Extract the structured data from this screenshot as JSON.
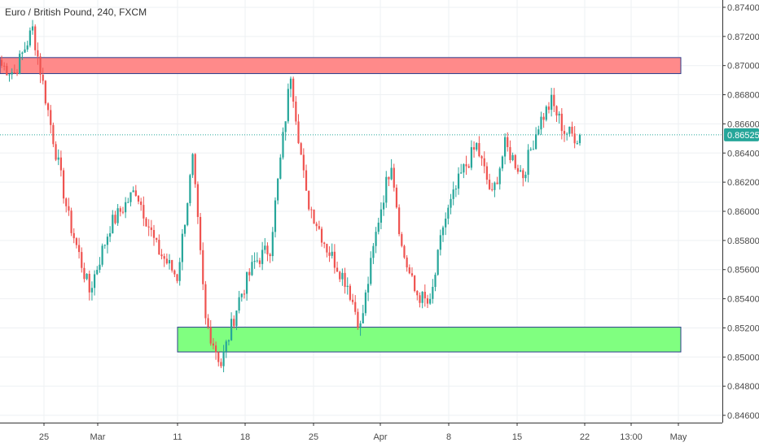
{
  "header": {
    "title": "Euro / British Pound, 240, FXCM"
  },
  "price_tag": {
    "label": "0.86525",
    "color": "#26a69a"
  },
  "colors": {
    "up": "#26a69a",
    "down": "#ef5350",
    "grid": "#eef0f3",
    "resistance_fill": "#ff8a8a",
    "support_fill": "#80ff80",
    "zone_border": "#2c3e8c"
  },
  "chart_data": {
    "type": "candlestick",
    "symbol": "Euro / British Pound",
    "timeframe": "240",
    "source": "FXCM",
    "ylim": [
      0.8455,
      0.8745
    ],
    "y_ticks": [
      "0.87400",
      "0.87200",
      "0.87000",
      "0.86800",
      "0.86600",
      "0.86400",
      "0.86200",
      "0.86000",
      "0.85800",
      "0.85600",
      "0.85400",
      "0.85200",
      "0.85000",
      "0.84800",
      "0.84600"
    ],
    "x_ticks": [
      "25",
      "Mar",
      "11",
      "18",
      "25",
      "Apr",
      "8",
      "15",
      "22",
      "13:00",
      "May"
    ],
    "last_price": 0.86525,
    "zones": [
      {
        "name": "resistance",
        "from": 0.86945,
        "to": 0.87055
      },
      {
        "name": "support",
        "from": 0.85035,
        "to": 0.85205
      }
    ],
    "anchors": [
      {
        "i": 0,
        "p": 0.87
      },
      {
        "i": 5,
        "p": 0.8695
      },
      {
        "i": 12,
        "p": 0.8725
      },
      {
        "i": 20,
        "p": 0.865
      },
      {
        "i": 26,
        "p": 0.8595
      },
      {
        "i": 34,
        "p": 0.8545
      },
      {
        "i": 42,
        "p": 0.859
      },
      {
        "i": 52,
        "p": 0.8615
      },
      {
        "i": 60,
        "p": 0.8575
      },
      {
        "i": 68,
        "p": 0.8555
      },
      {
        "i": 74,
        "p": 0.8635
      },
      {
        "i": 79,
        "p": 0.8525
      },
      {
        "i": 85,
        "p": 0.8495
      },
      {
        "i": 92,
        "p": 0.854
      },
      {
        "i": 98,
        "p": 0.8565
      },
      {
        "i": 104,
        "p": 0.8575
      },
      {
        "i": 112,
        "p": 0.8695
      },
      {
        "i": 118,
        "p": 0.861
      },
      {
        "i": 126,
        "p": 0.8575
      },
      {
        "i": 134,
        "p": 0.855
      },
      {
        "i": 139,
        "p": 0.852
      },
      {
        "i": 146,
        "p": 0.8595
      },
      {
        "i": 151,
        "p": 0.8635
      },
      {
        "i": 155,
        "p": 0.8575
      },
      {
        "i": 160,
        "p": 0.8545
      },
      {
        "i": 166,
        "p": 0.8535
      },
      {
        "i": 171,
        "p": 0.859
      },
      {
        "i": 178,
        "p": 0.8625
      },
      {
        "i": 184,
        "p": 0.8645
      },
      {
        "i": 190,
        "p": 0.861
      },
      {
        "i": 195,
        "p": 0.8645
      },
      {
        "i": 202,
        "p": 0.8625
      },
      {
        "i": 208,
        "p": 0.866
      },
      {
        "i": 213,
        "p": 0.8675
      },
      {
        "i": 218,
        "p": 0.8655
      },
      {
        "i": 224,
        "p": 0.865
      }
    ],
    "candle_count": 225
  }
}
